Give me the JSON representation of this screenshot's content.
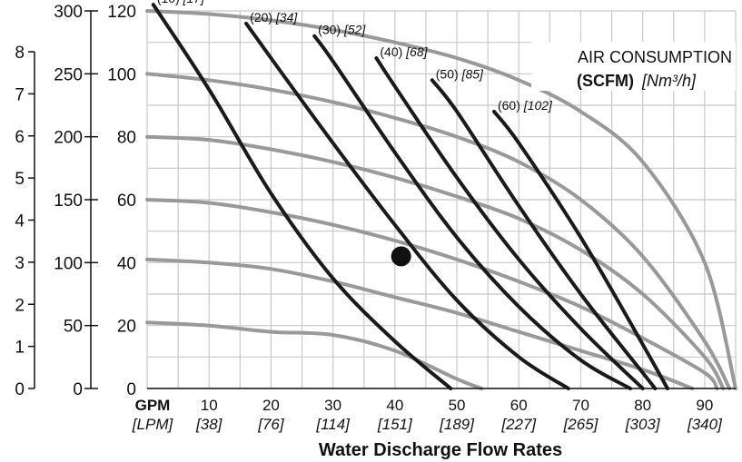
{
  "chart_data": {
    "type": "line",
    "title": "AIR CONSUMPTION",
    "subtitle_bold": "(SCFM)",
    "subtitle_unit": "[Nm³/h]",
    "xlabel": "Water Discharge Flow Rates",
    "x_unit_gpm": "GPM",
    "x_unit_lpm": "[LPM]",
    "xlim": [
      0,
      95
    ],
    "x_ticks": [
      {
        "gpm": 10,
        "gpm_label": "10",
        "lpm_label": "[38]"
      },
      {
        "gpm": 20,
        "gpm_label": "20",
        "lpm_label": "[76]"
      },
      {
        "gpm": 30,
        "gpm_label": "30",
        "lpm_label": "[114]"
      },
      {
        "gpm": 40,
        "gpm_label": "40",
        "lpm_label": "[151]"
      },
      {
        "gpm": 50,
        "gpm_label": "50",
        "lpm_label": "[189]"
      },
      {
        "gpm": 60,
        "gpm_label": "60",
        "lpm_label": "[227]"
      },
      {
        "gpm": 70,
        "gpm_label": "70",
        "lpm_label": "[265]"
      },
      {
        "gpm": 80,
        "gpm_label": "80",
        "lpm_label": "[303]"
      },
      {
        "gpm": 90,
        "gpm_label": "90",
        "lpm_label": "[340]"
      }
    ],
    "ylim": [
      0,
      120
    ],
    "y_ticks": [
      "0",
      "20",
      "40",
      "60",
      "80",
      "100",
      "120"
    ],
    "y_axis_secondary_ticks": [
      "0",
      "50",
      "100",
      "150",
      "200",
      "250",
      "300"
    ],
    "y_axis_tertiary_ticks": [
      "0",
      "1",
      "2",
      "3",
      "4",
      "5",
      "6",
      "7",
      "8"
    ],
    "grid": true,
    "pressure_curves": [
      {
        "x": [
          0,
          10,
          20,
          30,
          40,
          50,
          60,
          70,
          80,
          90,
          95
        ],
        "y": [
          120,
          119,
          117,
          114,
          110,
          105,
          98,
          88,
          72,
          40,
          0
        ]
      },
      {
        "x": [
          0,
          10,
          20,
          30,
          40,
          50,
          60,
          70,
          80,
          90,
          94
        ],
        "y": [
          100,
          98,
          95,
          91,
          86,
          80,
          72,
          60,
          42,
          15,
          0
        ]
      },
      {
        "x": [
          0,
          10,
          20,
          30,
          40,
          50,
          60,
          70,
          80,
          90,
          93
        ],
        "y": [
          80,
          79,
          76,
          72,
          67,
          61,
          54,
          44,
          30,
          10,
          0
        ]
      },
      {
        "x": [
          0,
          10,
          20,
          30,
          40,
          50,
          60,
          70,
          80,
          90,
          92
        ],
        "y": [
          60,
          59,
          56,
          52,
          47,
          41,
          34,
          26,
          16,
          5,
          0
        ]
      },
      {
        "x": [
          0,
          10,
          20,
          30,
          40,
          50,
          60,
          70,
          80,
          88
        ],
        "y": [
          41,
          40,
          38,
          34,
          29,
          24,
          18,
          12,
          6,
          0
        ]
      },
      {
        "x": [
          0,
          10,
          20,
          30,
          40,
          50,
          54
        ],
        "y": [
          21,
          20,
          18,
          17,
          12,
          3,
          0
        ]
      }
    ],
    "air_consumption_curves": [
      {
        "scfm": "(10)",
        "nm3h": "[17]",
        "x": [
          1,
          10,
          20,
          30,
          40,
          49
        ],
        "y": [
          122,
          95,
          62,
          35,
          15,
          0
        ]
      },
      {
        "scfm": "(20)",
        "nm3h": "[34]",
        "x": [
          16,
          20,
          30,
          40,
          50,
          60,
          68
        ],
        "y": [
          116,
          105,
          78,
          52,
          28,
          10,
          0
        ]
      },
      {
        "scfm": "(30)",
        "nm3h": "[52]",
        "x": [
          27,
          30,
          40,
          50,
          60,
          70,
          78
        ],
        "y": [
          112,
          104,
          75,
          48,
          26,
          9,
          0
        ]
      },
      {
        "scfm": "(40)",
        "nm3h": "[68]",
        "x": [
          37,
          40,
          50,
          60,
          70,
          80
        ],
        "y": [
          105,
          96,
          67,
          41,
          19,
          0
        ]
      },
      {
        "scfm": "(50)",
        "nm3h": "[85]",
        "x": [
          46,
          50,
          60,
          70,
          80,
          82
        ],
        "y": [
          98,
          88,
          58,
          30,
          5,
          0
        ]
      },
      {
        "scfm": "(60)",
        "nm3h": "[102]",
        "x": [
          56,
          60,
          70,
          80,
          84
        ],
        "y": [
          88,
          78,
          48,
          14,
          0
        ]
      }
    ],
    "operating_point": {
      "x": 41,
      "y": 42
    }
  }
}
